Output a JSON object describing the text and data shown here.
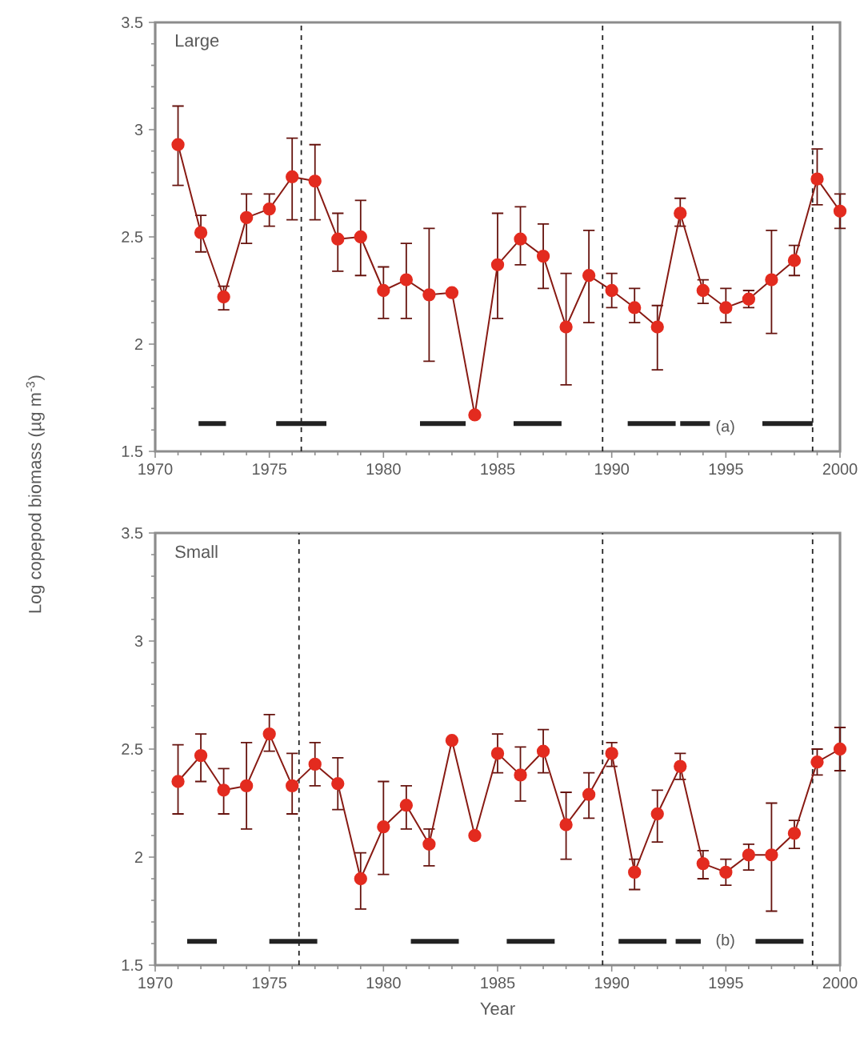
{
  "chart_data": [
    {
      "type": "line",
      "title": "Large",
      "ylabel": "Log copepod biomass (µg m$^{-3}$)",
      "x": [
        1971,
        1972,
        1973,
        1974,
        1975,
        1976,
        1977,
        1978,
        1979,
        1980,
        1981,
        1982,
        1983,
        1984,
        1985,
        1986,
        1987,
        1988,
        1989,
        1990,
        1991,
        1992,
        1993,
        1994,
        1995,
        1996,
        1997,
        1998,
        1999,
        2000
      ],
      "marker": "circle",
      "xlim": [
        1970,
        2000
      ],
      "ylim": [
        1.5,
        3.5
      ],
      "xticks": [
        1970,
        1975,
        1980,
        1985,
        1990,
        1995,
        2000
      ],
      "yticks": [
        1.5,
        2,
        2.5,
        3,
        3.5
      ],
      "annotations": [
        "(a)"
      ],
      "series": [
        {
          "color": "#e32b1f",
          "values": [
            2.93,
            2.52,
            2.22,
            2.59,
            2.63,
            2.78,
            2.76,
            2.49,
            2.5,
            2.25,
            2.3,
            2.23,
            2.24,
            1.67,
            2.37,
            2.49,
            2.41,
            2.08,
            2.32,
            2.25,
            2.17,
            2.08,
            2.61,
            2.25,
            2.17,
            2.21,
            2.3,
            2.39,
            2.77,
            2.62
          ],
          "errors": [
            [
              2.74,
              3.11
            ],
            [
              2.43,
              2.6
            ],
            [
              2.16,
              2.27
            ],
            [
              2.47,
              2.7
            ],
            [
              2.55,
              2.7
            ],
            [
              2.58,
              2.96
            ],
            [
              2.58,
              2.93
            ],
            [
              2.34,
              2.61
            ],
            [
              2.32,
              2.67
            ],
            [
              2.12,
              2.36
            ],
            [
              2.12,
              2.47
            ],
            [
              1.92,
              2.54
            ],
            null,
            null,
            [
              2.12,
              2.61
            ],
            [
              2.37,
              2.64
            ],
            [
              2.26,
              2.56
            ],
            [
              1.81,
              2.33
            ],
            [
              2.1,
              2.53
            ],
            [
              2.17,
              2.33
            ],
            [
              2.1,
              2.26
            ],
            [
              1.88,
              2.18
            ],
            [
              2.55,
              2.68
            ],
            [
              2.19,
              2.3
            ],
            [
              2.1,
              2.26
            ],
            [
              2.17,
              2.25
            ],
            [
              2.05,
              2.53
            ],
            [
              2.32,
              2.46
            ],
            [
              2.65,
              2.91
            ],
            [
              2.54,
              2.7
            ]
          ]
        },
        {
          "type": "line",
          "color": "#222222",
          "marker": "none",
          "x": [
            1971.9,
            1973.1
          ],
          "values": [
            1.63,
            1.63
          ]
        },
        {
          "type": "line",
          "color": "#222222",
          "marker": "none",
          "x": [
            1975.3,
            1977.5
          ],
          "values": [
            1.63,
            1.63
          ]
        },
        {
          "type": "line",
          "color": "#222222",
          "marker": "none",
          "x": [
            1981.6,
            1983.6
          ],
          "values": [
            1.63,
            1.63
          ]
        },
        {
          "type": "line",
          "color": "#222222",
          "marker": "none",
          "x": [
            1985.7,
            1987.8
          ],
          "values": [
            1.63,
            1.63
          ]
        },
        {
          "type": "line",
          "color": "#222222",
          "marker": "none",
          "x": [
            1990.7,
            1992.8
          ],
          "values": [
            1.63,
            1.63
          ]
        },
        {
          "type": "line",
          "color": "#222222",
          "marker": "none",
          "x": [
            1993.0,
            1994.3
          ],
          "values": [
            1.63,
            1.63
          ]
        },
        {
          "type": "line",
          "color": "#222222",
          "marker": "none",
          "x": [
            1996.6,
            1998.8
          ],
          "values": [
            1.63,
            1.63
          ]
        }
      ],
      "ref_lines": [
        {
          "axis": "x",
          "value": 1976.4,
          "line_style": "dashed",
          "color": "#222222"
        },
        {
          "axis": "x",
          "value": 1989.6,
          "line_style": "dashed",
          "color": "#222222"
        },
        {
          "axis": "x",
          "value": 1998.8,
          "line_style": "dashed",
          "color": "#222222"
        }
      ]
    },
    {
      "type": "line",
      "title": "Small",
      "xlabel": "Year",
      "x": [
        1971,
        1972,
        1973,
        1974,
        1975,
        1976,
        1977,
        1978,
        1979,
        1980,
        1981,
        1982,
        1983,
        1984,
        1985,
        1986,
        1987,
        1988,
        1989,
        1990,
        1991,
        1992,
        1993,
        1994,
        1995,
        1996,
        1997,
        1998,
        1999,
        2000
      ],
      "marker": "circle",
      "xlim": [
        1970,
        2000
      ],
      "ylim": [
        1.5,
        3.5
      ],
      "xticks": [
        1970,
        1975,
        1980,
        1985,
        1990,
        1995,
        2000
      ],
      "yticks": [
        1.5,
        2,
        2.5,
        3,
        3.5
      ],
      "annotations": [
        "(b)"
      ],
      "series": [
        {
          "color": "#e32b1f",
          "values": [
            2.35,
            2.47,
            2.31,
            2.33,
            2.57,
            2.33,
            2.43,
            2.34,
            1.9,
            2.14,
            2.24,
            2.06,
            2.54,
            2.1,
            2.48,
            2.38,
            2.49,
            2.15,
            2.29,
            2.48,
            1.93,
            2.2,
            2.42,
            1.97,
            1.93,
            2.01,
            2.01,
            2.11,
            2.44,
            2.5
          ],
          "errors": [
            [
              2.2,
              2.52
            ],
            [
              2.35,
              2.57
            ],
            [
              2.2,
              2.41
            ],
            [
              2.13,
              2.53
            ],
            [
              2.49,
              2.66
            ],
            [
              2.2,
              2.48
            ],
            [
              2.33,
              2.53
            ],
            [
              2.22,
              2.46
            ],
            [
              1.76,
              2.02
            ],
            [
              1.92,
              2.35
            ],
            [
              2.13,
              2.33
            ],
            [
              1.96,
              2.13
            ],
            null,
            null,
            [
              2.39,
              2.57
            ],
            [
              2.26,
              2.51
            ],
            [
              2.39,
              2.59
            ],
            [
              1.99,
              2.3
            ],
            [
              2.18,
              2.39
            ],
            [
              2.42,
              2.53
            ],
            [
              1.85,
              1.99
            ],
            [
              2.07,
              2.31
            ],
            [
              2.36,
              2.48
            ],
            [
              1.9,
              2.03
            ],
            [
              1.87,
              1.99
            ],
            [
              1.94,
              2.06
            ],
            [
              1.75,
              2.25
            ],
            [
              2.04,
              2.17
            ],
            [
              2.38,
              2.5
            ],
            [
              2.4,
              2.6
            ]
          ]
        },
        {
          "type": "line",
          "color": "#222222",
          "marker": "none",
          "x": [
            1971.4,
            1972.7
          ],
          "values": [
            1.61,
            1.61
          ]
        },
        {
          "type": "line",
          "color": "#222222",
          "marker": "none",
          "x": [
            1975.0,
            1977.1
          ],
          "values": [
            1.61,
            1.61
          ]
        },
        {
          "type": "line",
          "color": "#222222",
          "marker": "none",
          "x": [
            1981.2,
            1983.3
          ],
          "values": [
            1.61,
            1.61
          ]
        },
        {
          "type": "line",
          "color": "#222222",
          "marker": "none",
          "x": [
            1985.4,
            1987.5
          ],
          "values": [
            1.61,
            1.61
          ]
        },
        {
          "type": "line",
          "color": "#222222",
          "marker": "none",
          "x": [
            1990.3,
            1992.4
          ],
          "values": [
            1.61,
            1.61
          ]
        },
        {
          "type": "line",
          "color": "#222222",
          "marker": "none",
          "x": [
            1992.8,
            1993.9
          ],
          "values": [
            1.61,
            1.61
          ]
        },
        {
          "type": "line",
          "color": "#222222",
          "marker": "none",
          "x": [
            1996.3,
            1998.4
          ],
          "values": [
            1.61,
            1.61
          ]
        }
      ],
      "ref_lines": [
        {
          "axis": "x",
          "value": 1976.3,
          "line_style": "dashed",
          "color": "#222222"
        },
        {
          "axis": "x",
          "value": 1989.6,
          "line_style": "dashed",
          "color": "#222222"
        },
        {
          "axis": "x",
          "value": 1998.8,
          "line_style": "dashed",
          "color": "#222222"
        }
      ]
    }
  ]
}
